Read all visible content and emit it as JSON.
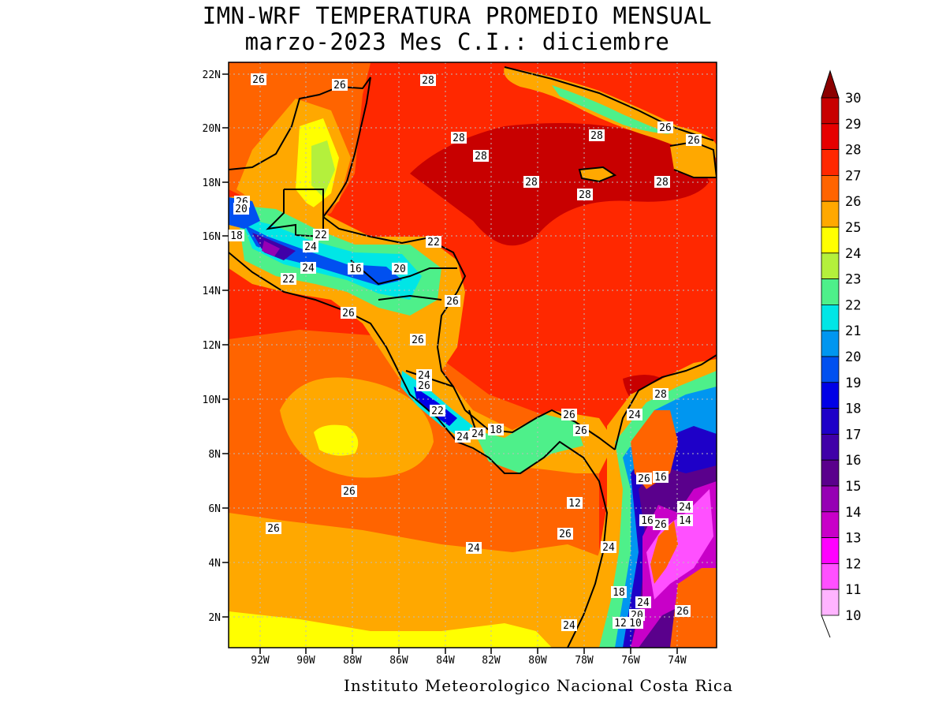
{
  "title_line1": "IMN-WRF  TEMPERATURA PROMEDIO MENSUAL",
  "title_line2": "marzo-2023 Mes C.I.: diciembre",
  "credit": "Instituto Meteorologico Nacional Costa Rica",
  "map": {
    "lon_ticks": [
      "92W",
      "90W",
      "88W",
      "86W",
      "84W",
      "82W",
      "80W",
      "78W",
      "76W",
      "74W"
    ],
    "lat_ticks": [
      "22N",
      "20N",
      "18N",
      "16N",
      "14N",
      "12N",
      "10N",
      "8N",
      "6N",
      "4N",
      "2N"
    ],
    "contour_labels": [
      "26",
      "26",
      "28",
      "28",
      "28",
      "28",
      "28",
      "28",
      "28",
      "26",
      "26",
      "26",
      "20",
      "18",
      "22",
      "24",
      "24",
      "22",
      "16",
      "20",
      "22",
      "26",
      "26",
      "26",
      "24",
      "26",
      "22",
      "24",
      "18",
      "24",
      "26",
      "26",
      "24",
      "28",
      "26",
      "16",
      "24",
      "16",
      "14",
      "26",
      "12",
      "26",
      "26",
      "26",
      "24",
      "18",
      "24",
      "20",
      "12",
      "10",
      "26",
      "24",
      "24"
    ]
  },
  "colorbar": {
    "levels": [
      "30",
      "29",
      "28",
      "27",
      "26",
      "25",
      "24",
      "23",
      "22",
      "21",
      "20",
      "19",
      "18",
      "17",
      "16",
      "15",
      "14",
      "13",
      "12",
      "11",
      "10"
    ],
    "colors": [
      "#a80000",
      "#c80000",
      "#e60000",
      "#ff2800",
      "#ff6400",
      "#ffa800",
      "#ffff00",
      "#b4f03c",
      "#4ef08a",
      "#00e6e6",
      "#0096f0",
      "#0050f0",
      "#0000e6",
      "#1e00c8",
      "#4000a8",
      "#5a008c",
      "#9600b4",
      "#c800c8",
      "#ff00ff",
      "#ff50ff",
      "#ffb4ff"
    ],
    "top_arrow_color": "#8c0000"
  },
  "palette": {
    "sea_28": "#e60000",
    "sea_27": "#ff2800",
    "sea_26": "#ff6400",
    "sea_25": "#ffa800",
    "sea_24": "#ffff00"
  }
}
